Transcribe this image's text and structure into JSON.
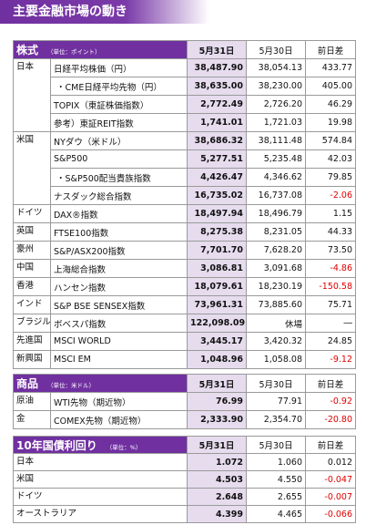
{
  "header": {
    "title": "主要金融市場の動き"
  },
  "sections": [
    {
      "label": "株式",
      "unit": "（単位：ポイント）",
      "columns": [
        "5月31日",
        "5月30日",
        "前日差"
      ],
      "groups": [
        {
          "region": "日本",
          "rows": [
            [
              "日経平均株価（円）",
              "38,487.90",
              "38,054.13",
              "433.77"
            ],
            [
              "・CME日経平均先物（円）",
              "38,635.00",
              "38,230.00",
              "405.00"
            ],
            [
              "TOPIX（東証株価指数）",
              "2,772.49",
              "2,726.20",
              "46.29"
            ],
            [
              "参考）東証REIT指数",
              "1,741.01",
              "1,721.03",
              "19.98"
            ]
          ]
        },
        {
          "region": "米国",
          "rows": [
            [
              "NYダウ（米ドル）",
              "38,686.32",
              "38,111.48",
              "574.84"
            ],
            [
              "S&P500",
              "5,277.51",
              "5,235.48",
              "42.03"
            ],
            [
              "・S&P500配当貴族指数",
              "4,426.47",
              "4,346.62",
              "79.85"
            ],
            [
              "ナスダック総合指数",
              "16,735.02",
              "16,737.08",
              "-2.06"
            ]
          ]
        },
        {
          "region": "ドイツ",
          "rows": [
            [
              "DAX®指数",
              "18,497.94",
              "18,496.79",
              "1.15"
            ]
          ]
        },
        {
          "region": "英国",
          "rows": [
            [
              "FTSE100指数",
              "8,275.38",
              "8,231.05",
              "44.33"
            ]
          ]
        },
        {
          "region": "豪州",
          "rows": [
            [
              "S&P/ASX200指数",
              "7,701.70",
              "7,628.20",
              "73.50"
            ]
          ]
        },
        {
          "region": "中国",
          "rows": [
            [
              "上海総合指数",
              "3,086.81",
              "3,091.68",
              "-4.86"
            ]
          ]
        },
        {
          "region": "香港",
          "rows": [
            [
              "ハンセン指数",
              "18,079.61",
              "18,230.19",
              "-150.58"
            ]
          ]
        },
        {
          "region": "インド",
          "rows": [
            [
              "S&P BSE SENSEX指数",
              "73,961.31",
              "73,885.60",
              "75.71"
            ]
          ]
        },
        {
          "region": "ブラジル",
          "rows": [
            [
              "ボベスパ指数",
              "122,098.09",
              "休場",
              "―"
            ]
          ]
        },
        {
          "region": "先進国",
          "rows": [
            [
              "MSCI WORLD",
              "3,445.17",
              "3,420.32",
              "24.85"
            ]
          ]
        },
        {
          "region": "新興国",
          "rows": [
            [
              "MSCI EM",
              "1,048.96",
              "1,058.08",
              "-9.12"
            ]
          ]
        }
      ]
    },
    {
      "label": "商品",
      "unit": "（単位：米ドル）",
      "columns": [
        "5月31日",
        "5月30日",
        "前日差"
      ],
      "groups": [
        {
          "region": "原油",
          "rows": [
            [
              "WTI先物（期近物）",
              "76.99",
              "77.91",
              "-0.92"
            ]
          ]
        },
        {
          "region": "金",
          "rows": [
            [
              "COMEX先物（期近物）",
              "2,333.90",
              "2,354.70",
              "-20.80"
            ]
          ]
        }
      ]
    },
    {
      "label": "10年国債利回り",
      "unit": "（単位：%）",
      "columns": [
        "5月31日",
        "5月30日",
        "前日差"
      ],
      "groups": [
        {
          "region": "日本",
          "rows": [
            [
              "1.072",
              "1.060",
              "0.012"
            ]
          ]
        },
        {
          "region": "米国",
          "rows": [
            [
              "4.503",
              "4.550",
              "-0.047"
            ]
          ]
        },
        {
          "region": "ドイツ",
          "rows": [
            [
              "2.648",
              "2.655",
              "-0.007"
            ]
          ]
        },
        {
          "region": "オーストラリア",
          "rows": [
            [
              "4.399",
              "4.465",
              "-0.066"
            ]
          ]
        }
      ]
    }
  ]
}
